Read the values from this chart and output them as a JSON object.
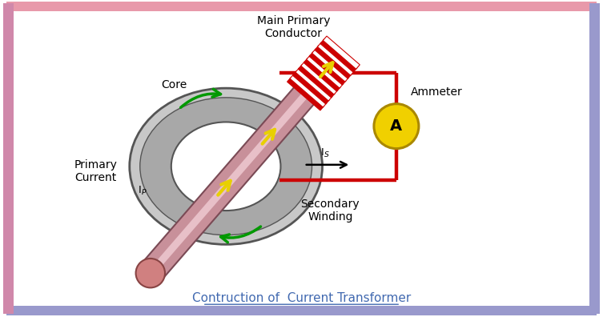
{
  "title": "Contruction of  Current Transformer",
  "title_color": "#4169b0",
  "bg_color": "#ffffff",
  "labels": {
    "main_primary_conductor": "Main Primary\nConductor",
    "core": "Core",
    "ammeter": "Ammeter",
    "ammeter_symbol": "A",
    "primary_current": "Primary\nCurrent",
    "secondary_winding": "Secondary\nWinding"
  },
  "colors": {
    "conductor_pink": "#c8909a",
    "conductor_highlight": "#e8c0c8",
    "conductor_edge": "#7a4a55",
    "core_outer": "#c8c8c8",
    "core_mid": "#a8a8a8",
    "core_inner_hole": "#e8e8e8",
    "core_edge": "#555555",
    "secondary_red": "#cc0000",
    "ammeter_yellow": "#f0d000",
    "ammeter_edge": "#aa8800",
    "arrow_yellow": "#e8d000",
    "arrow_green": "#009900",
    "end_cap": "#d08080",
    "end_cap_edge": "#884444"
  },
  "figsize": [
    7.53,
    3.96
  ],
  "dpi": 100
}
